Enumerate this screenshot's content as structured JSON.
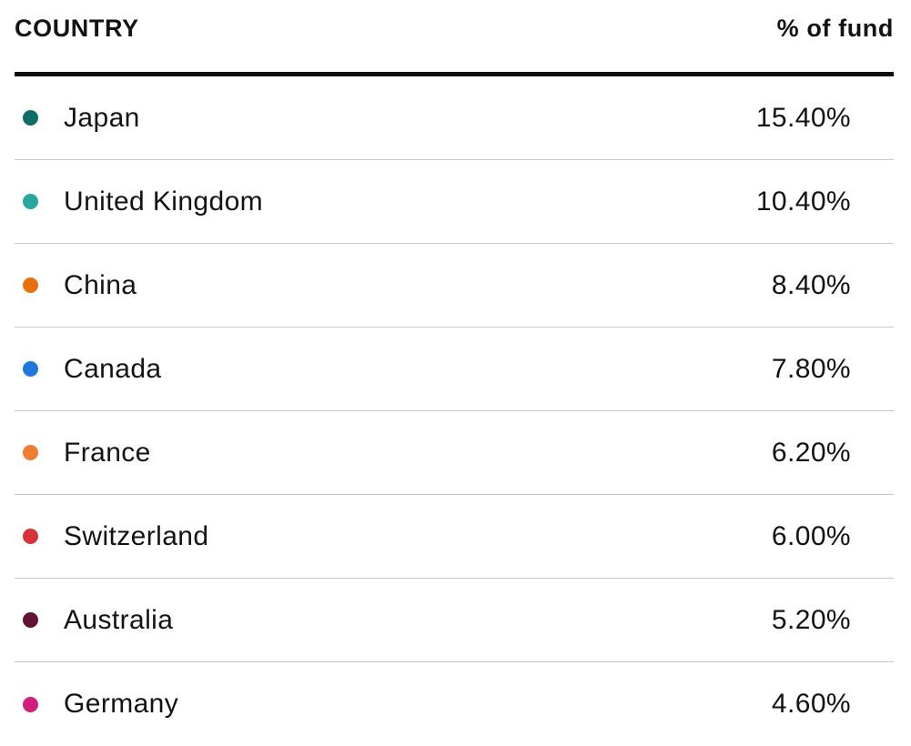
{
  "header": {
    "country_label": "COUNTRY",
    "percent_label": "% of fund"
  },
  "rows": [
    {
      "country": "Japan",
      "percent": "15.40%",
      "dot_color": "#0e6e66"
    },
    {
      "country": "United Kingdom",
      "percent": "10.40%",
      "dot_color": "#2aa79c"
    },
    {
      "country": "China",
      "percent": "8.40%",
      "dot_color": "#e8710f"
    },
    {
      "country": "Canada",
      "percent": "7.80%",
      "dot_color": "#1e78dc"
    },
    {
      "country": "France",
      "percent": "6.20%",
      "dot_color": "#ef7d33"
    },
    {
      "country": "Switzerland",
      "percent": "6.00%",
      "dot_color": "#d63238"
    },
    {
      "country": "Australia",
      "percent": "5.20%",
      "dot_color": "#621233"
    },
    {
      "country": "Germany",
      "percent": "4.60%",
      "dot_color": "#d01f7e"
    }
  ],
  "colors": {
    "text": "#131313",
    "header_rule": "#0d0d0d",
    "row_divider": "#c9c9c9",
    "background": "#ffffff"
  },
  "chart_data": {
    "type": "table",
    "title": "",
    "columns": [
      "COUNTRY",
      "% of fund"
    ],
    "categories": [
      "Japan",
      "United Kingdom",
      "China",
      "Canada",
      "France",
      "Switzerland",
      "Australia",
      "Germany"
    ],
    "values": [
      15.4,
      10.4,
      8.4,
      7.8,
      6.2,
      6.0,
      5.2,
      4.6
    ],
    "value_unit": "%",
    "legend_colors": [
      "#0e6e66",
      "#2aa79c",
      "#e8710f",
      "#1e78dc",
      "#ef7d33",
      "#d63238",
      "#621233",
      "#d01f7e"
    ],
    "layout": "two-column table, values right-aligned, colored legend dots left of category names"
  }
}
